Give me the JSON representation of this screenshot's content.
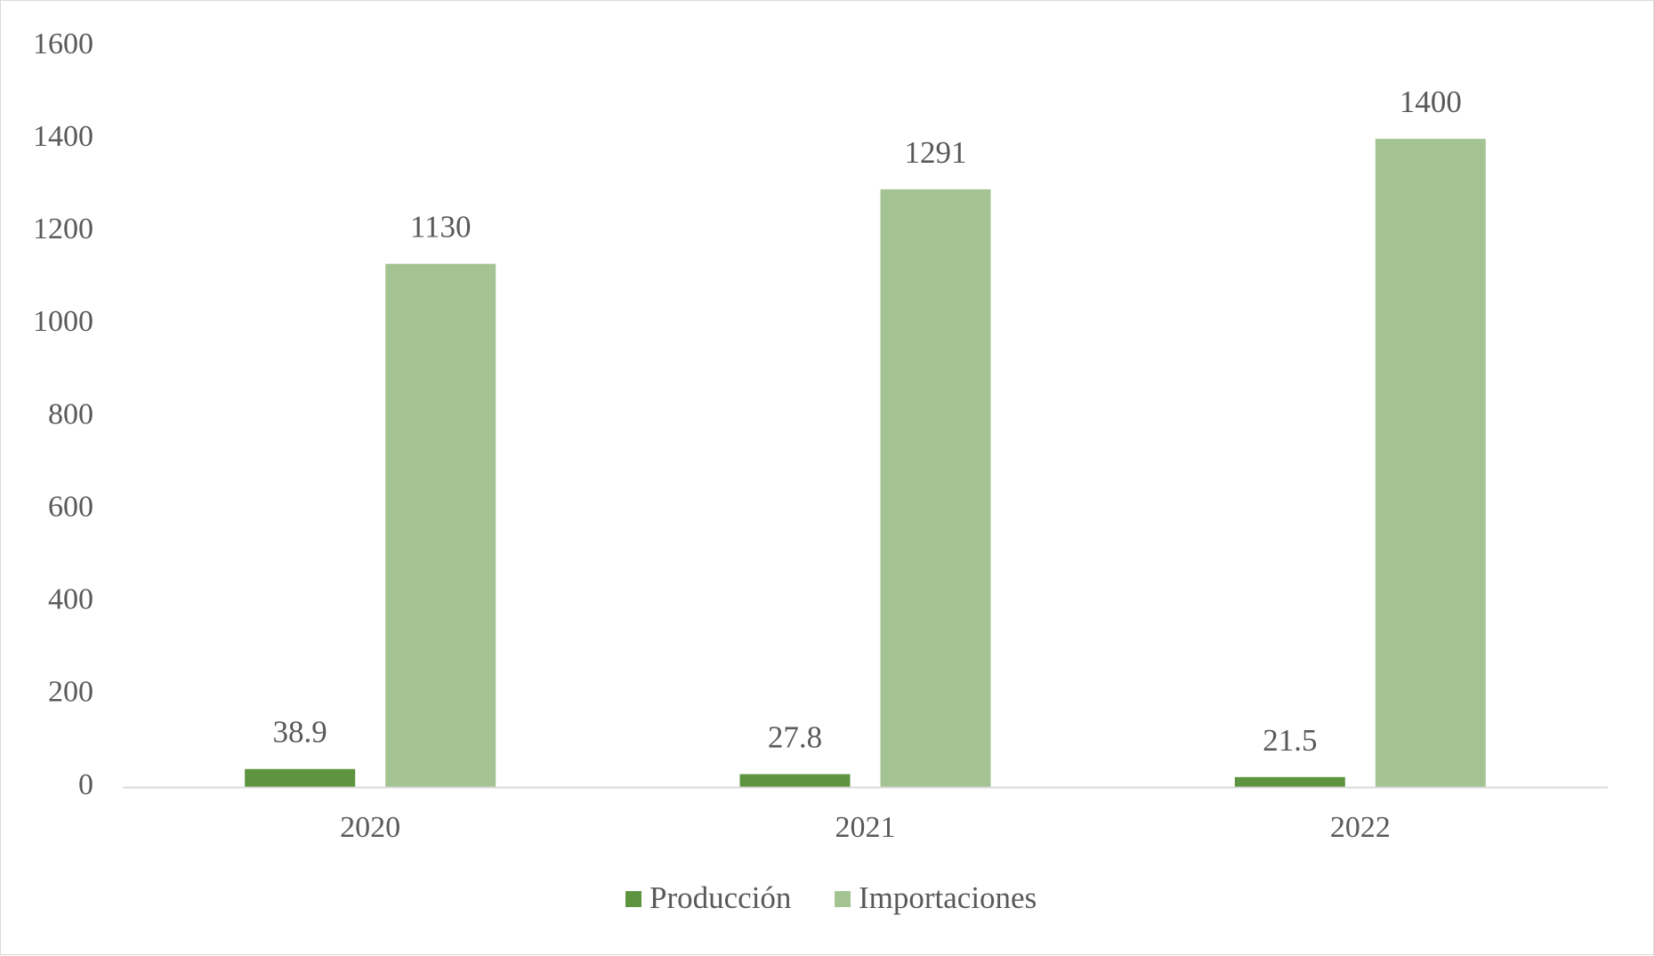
{
  "chart_data": {
    "type": "bar",
    "categories": [
      "2020",
      "2021",
      "2022"
    ],
    "series": [
      {
        "name": "Producción",
        "values": [
          38.9,
          27.8,
          21.5
        ],
        "color": "#5e9440"
      },
      {
        "name": "Importaciones",
        "values": [
          1130,
          1291,
          1400
        ],
        "color": "#a3c492"
      }
    ],
    "data_labels": [
      [
        "38.9",
        "27.8",
        "21.5"
      ],
      [
        "1130",
        "1291",
        "1400"
      ]
    ],
    "ylim": [
      0,
      1600
    ],
    "yticks": [
      0,
      200,
      400,
      600,
      800,
      1000,
      1200,
      1400,
      1600
    ],
    "grid": false,
    "legend": "bottom-center",
    "axis_color": "#d9d9d9",
    "text_color": "#595959"
  }
}
